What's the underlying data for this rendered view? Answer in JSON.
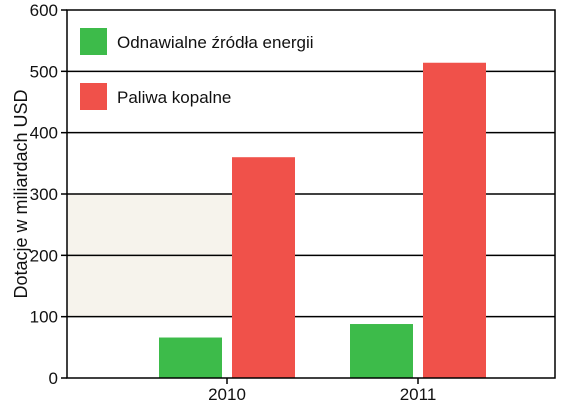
{
  "chart_data": {
    "type": "bar",
    "title": "",
    "xlabel": "",
    "ylabel": "Dotacje w miliardach USD",
    "ylim": [
      0,
      600
    ],
    "yticks": [
      0,
      100,
      200,
      300,
      400,
      500,
      600
    ],
    "grid": true,
    "legend_position": "top-left",
    "categories": [
      "2010",
      "2011"
    ],
    "series": [
      {
        "name": "Odnawialne źródła energii",
        "color": "#3dbb4a",
        "values": [
          66,
          88
        ]
      },
      {
        "name": "Paliwa kopalne",
        "color": "#f0514a",
        "values": [
          360,
          514
        ]
      }
    ],
    "band": {
      "y_from": 100,
      "y_to": 300,
      "color": "#f6f3ec"
    }
  }
}
